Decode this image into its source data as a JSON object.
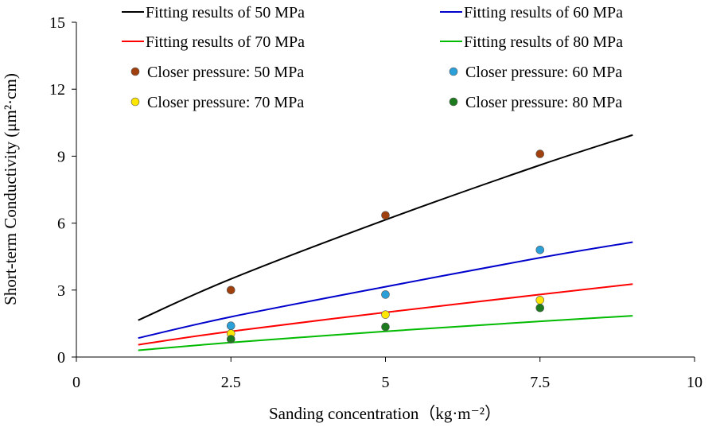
{
  "chart_data": {
    "type": "line",
    "xlabel": "Sanding concentration（kg·m⁻²）",
    "ylabel": "Short-term Conductivity (μm²·cm)",
    "xlim": [
      0,
      10
    ],
    "ylim": [
      0,
      15
    ],
    "xticks": [
      0,
      2.5,
      5,
      7.5,
      10
    ],
    "xtick_labels": [
      "0",
      "2.5",
      "5",
      "7.5",
      "10"
    ],
    "yticks": [
      0,
      3,
      6,
      9,
      12,
      15
    ],
    "ytick_labels": [
      "0",
      "3",
      "6",
      "9",
      "12",
      "15"
    ],
    "grid": false,
    "legend_position": "top (inside plot, two columns)",
    "fit_lines": [
      {
        "name": "Fitting results of 50 MPa",
        "color": "#000000",
        "x": [
          1,
          2.5,
          5,
          7.5,
          9
        ],
        "y": [
          1.65,
          3.5,
          6.15,
          8.6,
          9.95
        ]
      },
      {
        "name": "Fitting results of 60 MPa",
        "color": "#0000cc",
        "x": [
          1,
          2.5,
          5,
          7.5,
          9
        ],
        "y": [
          0.85,
          1.8,
          3.15,
          4.45,
          5.15
        ]
      },
      {
        "name": "Fitting results of 70 MPa",
        "color": "#ff0000",
        "x": [
          1,
          2.5,
          5,
          7.5,
          9
        ],
        "y": [
          0.55,
          1.15,
          2.0,
          2.8,
          3.27
        ]
      },
      {
        "name": "Fitting results of 80 MPa",
        "color": "#00bb00",
        "x": [
          1,
          2.5,
          5,
          7.5,
          9
        ],
        "y": [
          0.3,
          0.65,
          1.15,
          1.6,
          1.85
        ]
      }
    ],
    "scatter_series": [
      {
        "name": "Closer pressure: 50 MPa",
        "color": "#a0400f",
        "x": [
          2.5,
          5,
          7.5
        ],
        "y": [
          3.0,
          6.35,
          9.1
        ]
      },
      {
        "name": "Closer pressure: 60 MPa",
        "color": "#2ba0d8",
        "x": [
          2.5,
          5,
          7.5
        ],
        "y": [
          1.4,
          2.8,
          4.8
        ]
      },
      {
        "name": "Closer pressure: 70 MPa",
        "color": "#ffe600",
        "x": [
          2.5,
          5,
          7.5
        ],
        "y": [
          1.05,
          1.9,
          2.55
        ]
      },
      {
        "name": "Closer pressure: 80 MPa",
        "color": "#1e7a1e",
        "x": [
          2.5,
          5,
          7.5
        ],
        "y": [
          0.8,
          1.35,
          2.2
        ]
      }
    ]
  }
}
